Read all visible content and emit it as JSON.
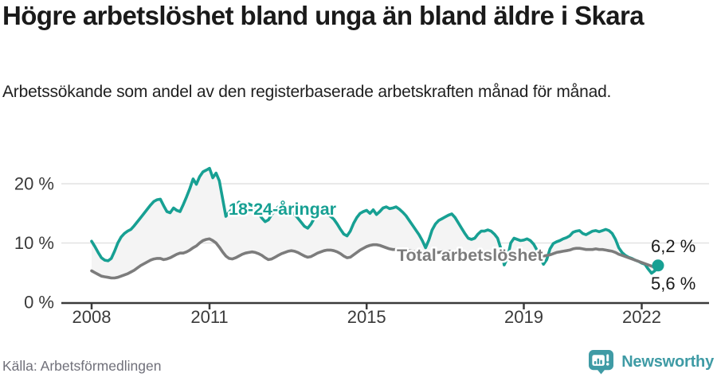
{
  "header": {
    "title": "Högre arbetslöshet bland unga än bland äldre i Skara",
    "subtitle": "Arbetssökande som andel av den registerbaserade arbetskraften månad för månad."
  },
  "chart_data": {
    "type": "line",
    "frequency": "monthly",
    "x_start": "2008-01",
    "x_end": "2022-06",
    "x_tick_years": [
      2008,
      2011,
      2015,
      2019,
      2022
    ],
    "x_tick_labels": [
      "2008",
      "2011",
      "2015",
      "2019",
      "2022"
    ],
    "y_ticks": [
      {
        "value": 0,
        "label": "0 %"
      },
      {
        "value": 10,
        "label": "10 %"
      },
      {
        "value": 20,
        "label": "20 %"
      }
    ],
    "ylim": [
      0,
      24
    ],
    "unit": "%",
    "grid": "horizontal",
    "fill_between_series": true,
    "legend_position": "inline-labels",
    "series": [
      {
        "name": "18-24-åringar",
        "color": "#17a093",
        "end_label": "6,2 %",
        "end_value": 6.2,
        "end_dot": true,
        "values": [
          10.3,
          9.4,
          8.4,
          7.5,
          7.1,
          7.0,
          7.4,
          8.6,
          10.0,
          11.0,
          11.6,
          12.0,
          12.3,
          12.9,
          13.6,
          14.3,
          15.0,
          15.7,
          16.4,
          17.0,
          17.3,
          17.4,
          16.3,
          15.3,
          15.1,
          15.9,
          15.5,
          15.3,
          16.5,
          17.8,
          19.2,
          20.8,
          19.9,
          21.2,
          22.0,
          22.3,
          22.6,
          21.0,
          21.8,
          20.5,
          17.5,
          14.5,
          15.2,
          15.8,
          16.4,
          16.9,
          16.6,
          16.2,
          16.6,
          16.3,
          15.8,
          15.0,
          14.2,
          13.6,
          13.9,
          14.8,
          15.6,
          16.1,
          16.0,
          15.7,
          15.5,
          15.2,
          14.8,
          14.2,
          13.5,
          12.8,
          12.5,
          13.2,
          14.2,
          14.9,
          15.2,
          15.0,
          14.8,
          14.5,
          14.0,
          13.2,
          12.3,
          11.5,
          11.2,
          12.0,
          13.3,
          14.3,
          15.0,
          15.3,
          15.5,
          15.0,
          15.6,
          14.8,
          15.3,
          15.9,
          16.1,
          15.8,
          15.9,
          16.1,
          15.7,
          15.2,
          14.6,
          13.8,
          13.0,
          12.2,
          11.4,
          10.4,
          9.2,
          10.5,
          12.2,
          13.2,
          13.8,
          14.1,
          14.4,
          14.7,
          14.9,
          14.3,
          13.4,
          12.5,
          11.6,
          10.8,
          10.6,
          10.8,
          11.5,
          12.0,
          12.0,
          12.2,
          12.0,
          11.5,
          10.8,
          9.0,
          6.3,
          7.5,
          10.0,
          10.8,
          10.6,
          10.4,
          10.5,
          10.7,
          10.4,
          9.8,
          8.8,
          7.5,
          6.4,
          7.2,
          9.0,
          9.9,
          10.2,
          10.4,
          10.7,
          10.9,
          11.2,
          11.8,
          12.0,
          12.1,
          11.6,
          11.4,
          11.7,
          12.0,
          12.1,
          11.9,
          12.1,
          12.3,
          12.1,
          11.6,
          10.6,
          9.2,
          8.4,
          7.9,
          7.6,
          7.4,
          7.1,
          6.9,
          6.6,
          6.4,
          5.6,
          4.9,
          5.3,
          6.2
        ]
      },
      {
        "name": "Total arbetslöshet",
        "color": "#7c7c7c",
        "end_label": "5,6 %",
        "end_value": 5.6,
        "end_dot": false,
        "values": [
          5.3,
          5.0,
          4.7,
          4.4,
          4.3,
          4.2,
          4.1,
          4.1,
          4.2,
          4.4,
          4.6,
          4.8,
          5.1,
          5.4,
          5.8,
          6.2,
          6.5,
          6.8,
          7.1,
          7.3,
          7.4,
          7.4,
          7.2,
          7.3,
          7.5,
          7.8,
          8.1,
          8.3,
          8.3,
          8.5,
          8.8,
          9.2,
          9.5,
          10.0,
          10.4,
          10.6,
          10.7,
          10.4,
          10.0,
          9.3,
          8.5,
          7.8,
          7.4,
          7.3,
          7.5,
          7.8,
          8.1,
          8.3,
          8.4,
          8.5,
          8.4,
          8.2,
          7.9,
          7.5,
          7.2,
          7.3,
          7.6,
          7.9,
          8.2,
          8.4,
          8.6,
          8.7,
          8.6,
          8.4,
          8.1,
          7.8,
          7.6,
          7.7,
          8.0,
          8.3,
          8.5,
          8.7,
          8.8,
          8.8,
          8.7,
          8.5,
          8.2,
          7.8,
          7.5,
          7.6,
          8.0,
          8.4,
          8.8,
          9.1,
          9.4,
          9.6,
          9.7,
          9.7,
          9.6,
          9.4,
          9.2,
          9.0,
          8.9,
          8.9,
          8.9,
          8.9,
          8.8,
          8.7,
          8.6,
          8.5,
          8.3,
          8.2,
          8.1,
          8.2,
          8.3,
          8.4,
          8.4,
          8.5,
          8.5,
          8.6,
          8.6,
          8.5,
          8.4,
          8.3,
          8.2,
          8.3,
          8.4,
          8.5,
          8.5,
          8.5,
          8.5,
          8.4,
          8.3,
          8.2,
          8.0,
          7.9,
          7.8,
          7.8,
          7.9,
          7.9,
          7.9,
          7.8,
          7.8,
          7.8,
          7.8,
          7.7,
          7.7,
          7.7,
          7.8,
          7.9,
          8.0,
          8.2,
          8.4,
          8.5,
          8.6,
          8.7,
          8.8,
          9.0,
          9.1,
          9.1,
          9.0,
          8.9,
          8.9,
          8.9,
          9.0,
          8.9,
          8.9,
          8.8,
          8.7,
          8.6,
          8.4,
          8.1,
          7.9,
          7.7,
          7.5,
          7.3,
          7.1,
          6.9,
          6.7,
          6.5,
          6.3,
          6.1,
          5.9,
          5.6
        ]
      }
    ]
  },
  "footer": {
    "source": "Källa: Arbetsförmedlingen",
    "brand": "Newsworthy",
    "brand_icon": "newsworthy-chart-bubble-icon"
  },
  "colors": {
    "accent_teal": "#17a093",
    "line_gray": "#7c7c7c",
    "fill_between": "#f4f4f4",
    "grid": "#e2e2e2",
    "axis": "#3a3a3a",
    "text": "#1a1a1a",
    "muted_text": "#70707a",
    "brand": "#3f9ba5"
  }
}
